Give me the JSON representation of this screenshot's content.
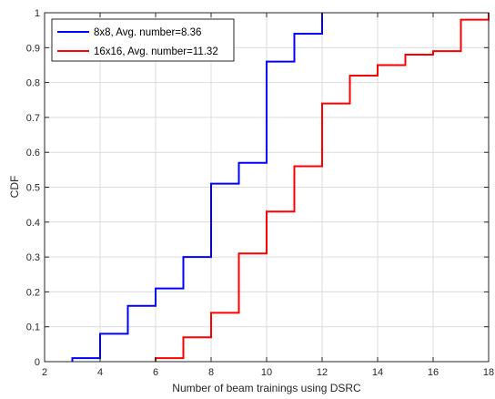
{
  "chart_data": {
    "type": "line",
    "step": true,
    "xlabel": "Number of beam trainings using DSRC",
    "ylabel": "CDF",
    "xlim": [
      2,
      18
    ],
    "ylim": [
      0,
      1
    ],
    "xticks": [
      2,
      4,
      6,
      8,
      10,
      12,
      14,
      16,
      18
    ],
    "yticks": [
      0,
      0.1,
      0.2,
      0.3,
      0.4,
      0.5,
      0.6,
      0.7,
      0.8,
      0.9,
      1
    ],
    "xtick_labels": [
      "2",
      "4",
      "6",
      "8",
      "10",
      "12",
      "14",
      "16",
      "18"
    ],
    "ytick_labels": [
      "0",
      "0.1",
      "0.2",
      "0.3",
      "0.4",
      "0.5",
      "0.6",
      "0.7",
      "0.8",
      "0.9",
      "1"
    ],
    "grid": true,
    "legend_position": "top-left",
    "series": [
      {
        "name": "8x8, Avg. number=8.36",
        "color": "#0000ff",
        "x": [
          3,
          4,
          5,
          6,
          7,
          8,
          9,
          10,
          11,
          12
        ],
        "y": [
          0.01,
          0.08,
          0.16,
          0.21,
          0.3,
          0.51,
          0.57,
          0.86,
          0.94,
          1.0
        ]
      },
      {
        "name": "16x16, Avg. number=11.32",
        "color": "#ff0000",
        "x": [
          6,
          7,
          8,
          9,
          10,
          11,
          12,
          13,
          14,
          15,
          16,
          17,
          18
        ],
        "y": [
          0.01,
          0.07,
          0.14,
          0.31,
          0.43,
          0.56,
          0.74,
          0.82,
          0.85,
          0.88,
          0.89,
          0.98,
          1.0
        ]
      }
    ]
  }
}
